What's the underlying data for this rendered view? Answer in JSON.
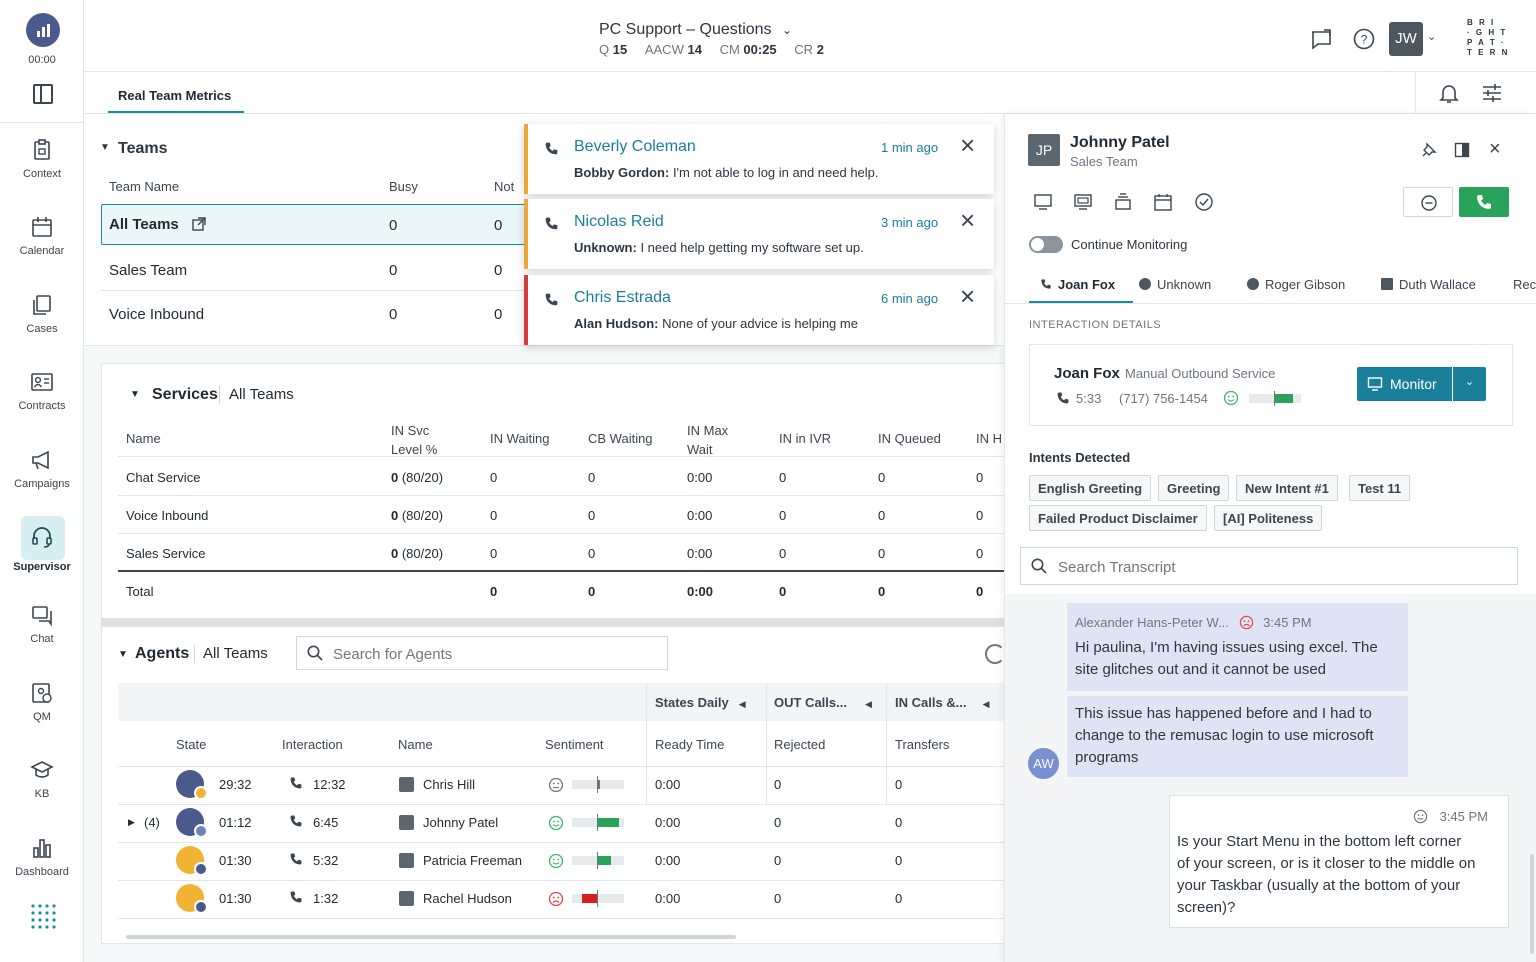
{
  "nav": {
    "timer": "00:00",
    "items": [
      {
        "label": "Context",
        "icon": "clipboard-icon"
      },
      {
        "label": "Calendar",
        "icon": "calendar-icon"
      },
      {
        "label": "Cases",
        "icon": "cases-icon"
      },
      {
        "label": "Contracts",
        "icon": "contract-icon"
      },
      {
        "label": "Campaigns",
        "icon": "megaphone-icon"
      },
      {
        "label": "Supervisor",
        "icon": "headset-icon"
      },
      {
        "label": "Chat",
        "icon": "chat-icon"
      },
      {
        "label": "QM",
        "icon": "qm-icon"
      },
      {
        "label": "KB",
        "icon": "graduation-cap-icon"
      },
      {
        "label": "Dashboard",
        "icon": "bar-chart-icon"
      }
    ]
  },
  "header": {
    "title": "PC Support – Questions",
    "stats": [
      {
        "label": "Q",
        "value": "15"
      },
      {
        "label": "AACW",
        "value": "14"
      },
      {
        "label": "CM",
        "value": "00:25"
      },
      {
        "label": "CR",
        "value": "2"
      }
    ],
    "user_initials": "JW",
    "logo_lines": [
      "B R I",
      "· G H T",
      "P A T ·",
      "T E R N"
    ]
  },
  "tabs": {
    "active": "Real Team Metrics"
  },
  "teams": {
    "title": "Teams",
    "columns": [
      "Team Name",
      "Busy",
      "Not"
    ],
    "rows": [
      {
        "name": "All Teams",
        "busy": "0",
        "not": "0"
      },
      {
        "name": "Sales Team",
        "busy": "0",
        "not": "0"
      },
      {
        "name": "Voice Inbound",
        "busy": "0",
        "not": "0"
      }
    ]
  },
  "notifications": [
    {
      "name": "Beverly Coleman",
      "time": "1 min ago",
      "from": "Bobby Gordon:",
      "msg": " I'm not able to log in and need help.",
      "color": "#e8a93a"
    },
    {
      "name": "Nicolas Reid",
      "time": "3 min ago",
      "from": "Unknown:",
      "msg": " I need help getting my software set up.",
      "color": "#e8a93a"
    },
    {
      "name": "Chris Estrada",
      "time": "6 min ago",
      "from": "Alan Hudson:",
      "msg": " None of your advice is helping me",
      "color": "#d63b3b"
    }
  ],
  "services": {
    "title": "Services",
    "scope": "All Teams",
    "columns": [
      "Name",
      "IN Svc",
      "Level %",
      "IN Waiting",
      "CB Waiting",
      "IN Max",
      "Wait",
      "IN in IVR",
      "IN Queued",
      "IN H"
    ],
    "rows": [
      {
        "name": "Chat Service",
        "svc": "0",
        "svc_ratio": " (80/20)",
        "waiting": "0",
        "cb": "0",
        "max": "0:00",
        "ivr": "0",
        "queued": "0",
        "h": "0"
      },
      {
        "name": "Voice Inbound",
        "svc": "0",
        "svc_ratio": " (80/20)",
        "waiting": "0",
        "cb": "0",
        "max": "0:00",
        "ivr": "0",
        "queued": "0",
        "h": "0"
      },
      {
        "name": "Sales Service",
        "svc": "0",
        "svc_ratio": " (80/20)",
        "waiting": "0",
        "cb": "0",
        "max": "0:00",
        "ivr": "0",
        "queued": "0",
        "h": "0"
      }
    ],
    "total": {
      "name": "Total",
      "waiting": "0",
      "cb": "0",
      "max": "0:00",
      "ivr": "0",
      "queued": "0",
      "h": "0"
    }
  },
  "agents": {
    "title": "Agents",
    "scope": "All Teams",
    "search_placeholder": "Search for Agents",
    "group_headers": [
      "States Daily",
      "OUT Calls...",
      "IN Calls &..."
    ],
    "columns": [
      "State",
      "Interaction",
      "Name",
      "Sentiment",
      "Ready Time",
      "Rejected",
      "Transfers"
    ],
    "rows": [
      {
        "expand": "",
        "state_time": "29:32",
        "interaction": "12:32",
        "name": "Chris Hill",
        "sentiment": "neutral",
        "level": 0.5,
        "ready": "0:00",
        "rejected": "0",
        "transfers": "0"
      },
      {
        "expand": "(4)",
        "state_time": "01:12",
        "interaction": "6:45",
        "name": "Johnny Patel",
        "sentiment": "positive",
        "level": 0.9,
        "ready": "0:00",
        "rejected": "0",
        "transfers": "0"
      },
      {
        "expand": "",
        "state_time": "01:30",
        "interaction": "5:32",
        "name": "Patricia Freeman",
        "sentiment": "positive",
        "level": 0.75,
        "ready": "0:00",
        "rejected": "0",
        "transfers": "0"
      },
      {
        "expand": "",
        "state_time": "01:30",
        "interaction": "1:32",
        "name": "Rachel Hudson",
        "sentiment": "negative",
        "level": 0.2,
        "ready": "0:00",
        "rejected": "0",
        "transfers": "0"
      }
    ]
  },
  "panel": {
    "initials": "JP",
    "name": "Johnny Patel",
    "team": "Sales Team",
    "continue_monitoring": "Continue Monitoring",
    "session_tabs": [
      "Joan Fox",
      "Unknown",
      "Roger Gibson",
      "Duth Wallace",
      "Rec"
    ],
    "section_label": "INTERACTION DETAILS",
    "interaction": {
      "name": "Joan Fox",
      "service": "Manual Outbound Service",
      "duration": "5:33",
      "phone": "(717) 756-1454",
      "monitor_label": "Monitor"
    },
    "intents_label": "Intents Detected",
    "intents": [
      "English Greeting",
      "Greeting",
      "New Intent #1",
      "Test 11",
      "Failed Product Disclaimer",
      "[AI] Politeness"
    ],
    "search_placeholder": "Search Transcript",
    "messages": [
      {
        "author": "Alexander Hans-Peter W...",
        "time": "3:45 PM",
        "lines": [
          "Hi paulina, I'm having issues using excel. The",
          "site glitches out and it cannot be used"
        ]
      },
      {
        "lines": [
          "This issue has happened before and I had to",
          "change to the remusac login to use microsoft",
          "programs"
        ],
        "avatar": "AW"
      },
      {
        "time": "3:45 PM",
        "lines": [
          "Is your Start Menu in the bottom left corner",
          "of your screen, or is it closer to the middle on",
          "your Taskbar (usually at the bottom of your",
          "screen)?"
        ]
      }
    ]
  }
}
